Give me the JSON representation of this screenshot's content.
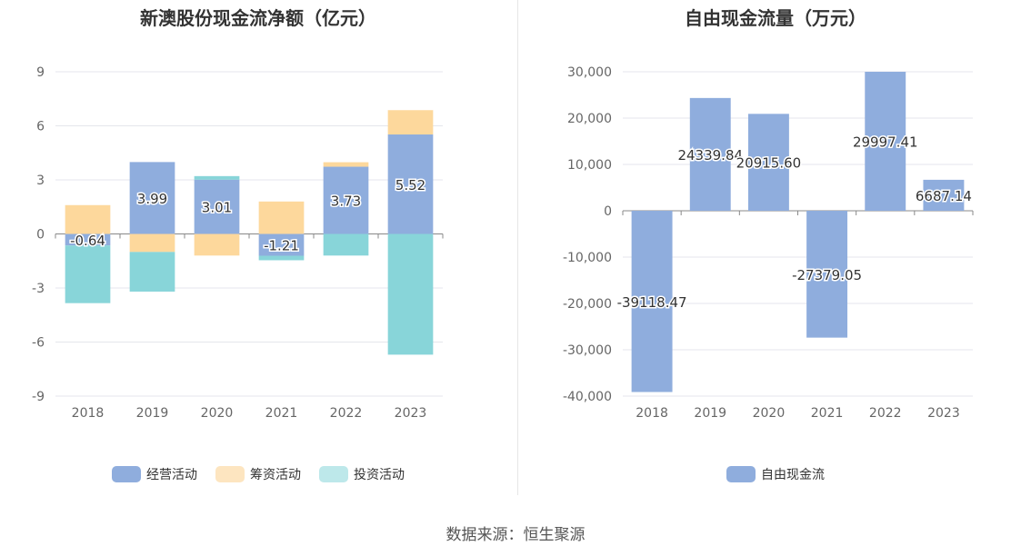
{
  "source_label": "数据来源：恒生聚源",
  "chart_data": [
    {
      "type": "bar",
      "stacked": true,
      "title": "新澳股份现金流净额（亿元）",
      "categories": [
        "2018",
        "2019",
        "2020",
        "2021",
        "2022",
        "2023"
      ],
      "y_ticks": [
        "9",
        "6",
        "3",
        "0",
        "-3",
        "-6",
        "-9"
      ],
      "ylim": [
        -9,
        9
      ],
      "series": [
        {
          "name": "经营活动",
          "color": "#8faddd",
          "values": [
            -0.64,
            3.99,
            3.01,
            -1.21,
            3.73,
            5.52
          ],
          "labels": [
            "-0.64",
            "3.99",
            "3.01",
            "-1.21",
            "3.73",
            "5.52"
          ]
        },
        {
          "name": "筹资活动",
          "color": "#fdd89c",
          "legend_color": "#fde5c0",
          "values": [
            1.6,
            -1.0,
            -1.2,
            1.8,
            0.25,
            1.35
          ]
        },
        {
          "name": "投资活动",
          "color": "#88d5d9",
          "legend_color": "#bde8ea",
          "values": [
            -3.2,
            -2.2,
            0.2,
            -0.25,
            -1.2,
            -6.7
          ]
        }
      ],
      "grid": true,
      "legend_position": "bottom"
    },
    {
      "type": "bar",
      "title": "自由现金流量（万元）",
      "categories": [
        "2018",
        "2019",
        "2020",
        "2021",
        "2022",
        "2023"
      ],
      "y_ticks": [
        "30,000",
        "20,000",
        "10,000",
        "0",
        "-10,000",
        "-20,000",
        "-30,000",
        "-40,000"
      ],
      "ylim": [
        -40000,
        30000
      ],
      "series": [
        {
          "name": "自由现金流",
          "color": "#8faddd",
          "values": [
            -39118.47,
            24339.84,
            20915.6,
            -27379.05,
            29997.41,
            6687.14
          ],
          "labels": [
            "-39118.47",
            "24339.84",
            "20915.60",
            "-27379.05",
            "29997.41",
            "6687.14"
          ]
        }
      ],
      "grid": true,
      "legend_position": "bottom"
    }
  ]
}
